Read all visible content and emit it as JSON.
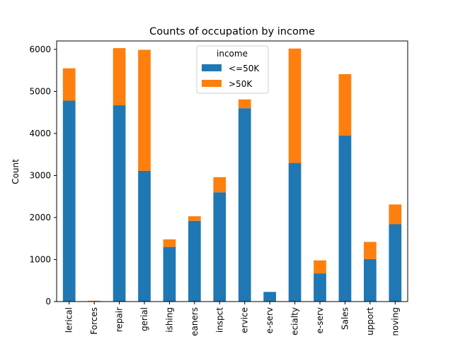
{
  "chart_data": {
    "type": "bar",
    "stacked": true,
    "title": "Counts of occupation by income",
    "xlabel": "",
    "ylabel": "Count",
    "ylim": [
      0,
      6200
    ],
    "yticks": [
      0,
      1000,
      2000,
      3000,
      4000,
      5000,
      6000
    ],
    "grid": false,
    "legend": {
      "title": "income",
      "placement": "top-center"
    },
    "categories": [
      "lerical",
      "Forces",
      "repair",
      "gerial",
      "ishing",
      "eaners",
      "inspct",
      "ervice",
      "e-serv",
      "ecialty",
      "e-serv",
      "Sales",
      "upport",
      "noving"
    ],
    "series": [
      {
        "name": "<=50K",
        "color": "#1f77b4",
        "values": [
          4780,
          10,
          4670,
          3110,
          1300,
          1920,
          2600,
          4600,
          230,
          3300,
          670,
          3950,
          1010,
          1840
        ]
      },
      {
        "name": ">50K",
        "color": "#ff7f0e",
        "values": [
          770,
          10,
          1360,
          2880,
          180,
          110,
          360,
          210,
          0,
          2720,
          310,
          1460,
          410,
          470
        ]
      }
    ]
  }
}
